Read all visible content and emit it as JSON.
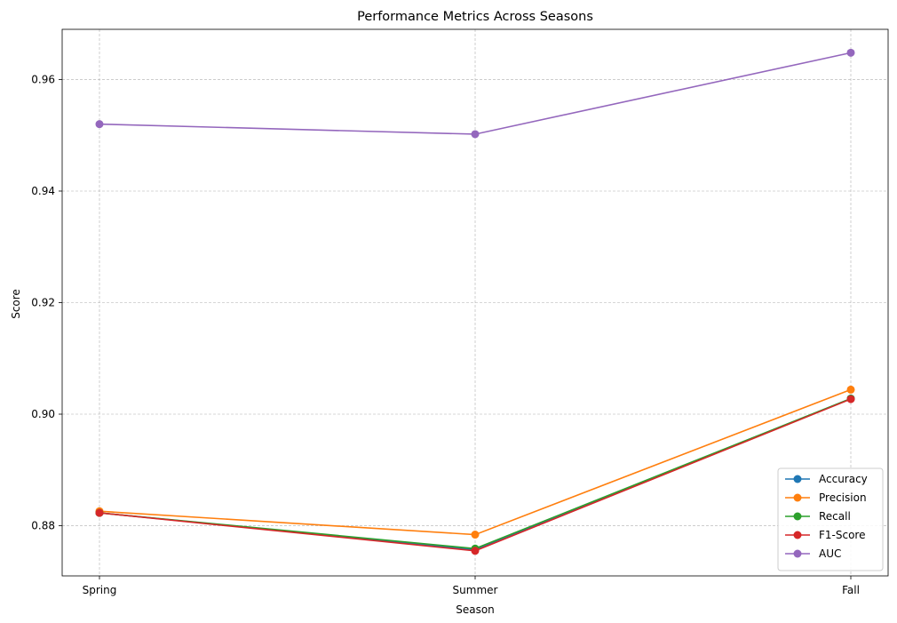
{
  "chart_data": {
    "type": "line",
    "title": "Performance Metrics Across Seasons",
    "xlabel": "Season",
    "ylabel": "Score",
    "categories": [
      "Spring",
      "Summer",
      "Fall"
    ],
    "ylim": [
      0.871,
      0.969
    ],
    "yticks": [
      0.88,
      0.9,
      0.92,
      0.94,
      0.96
    ],
    "ytick_labels": [
      "0.88",
      "0.90",
      "0.92",
      "0.94",
      "0.96"
    ],
    "grid": true,
    "legend_position": "lower-right",
    "series": [
      {
        "name": "Accuracy",
        "color": "#1f77b4",
        "values": [
          0.8823,
          0.8757,
          0.9028
        ]
      },
      {
        "name": "Precision",
        "color": "#ff7f0e",
        "values": [
          0.8826,
          0.8784,
          0.9044
        ]
      },
      {
        "name": "Recall",
        "color": "#2ca02c",
        "values": [
          0.8823,
          0.8759,
          0.9028
        ]
      },
      {
        "name": "F1-Score",
        "color": "#d62728",
        "values": [
          0.8823,
          0.8755,
          0.9027
        ]
      },
      {
        "name": "AUC",
        "color": "#9467bd",
        "values": [
          0.952,
          0.9502,
          0.9648
        ]
      }
    ]
  }
}
